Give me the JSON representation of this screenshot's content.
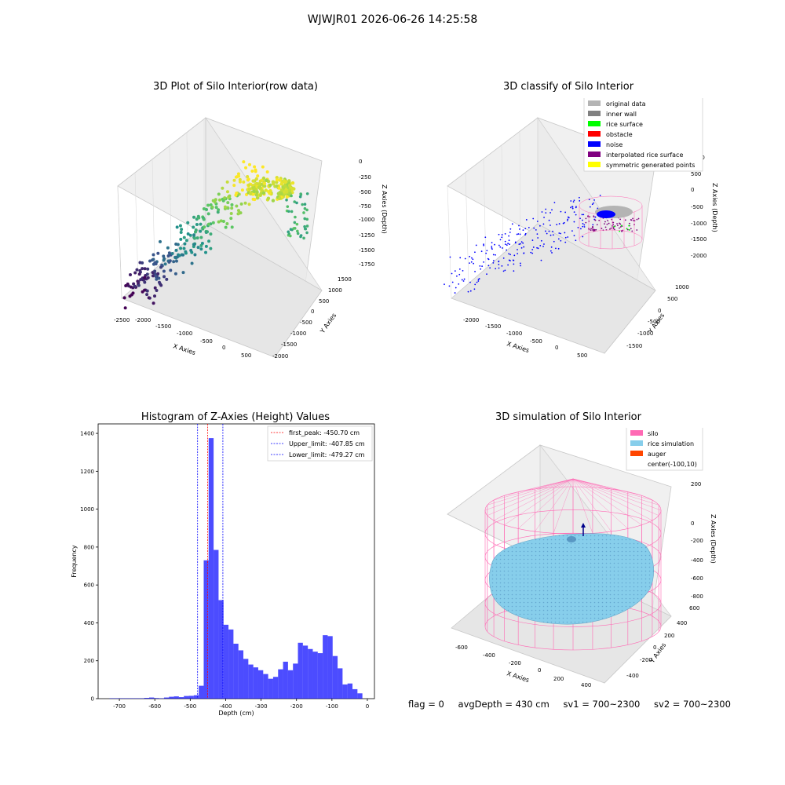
{
  "figure": {
    "title": "WJWJR01 2026-06-26 14:25:58"
  },
  "panels": {
    "raw": {
      "title": "3D Plot of Silo Interior(row data)",
      "xlabel": "X Axies",
      "ylabel": "Y Axies",
      "zlabel": "Z Axies (Depth)",
      "xticks": [
        "-2500",
        "-2000",
        "-1500",
        "-1000",
        "-500",
        "0",
        "500"
      ],
      "yticks": [
        "1500",
        "1000",
        "500",
        "0",
        "-500",
        "-1000",
        "-1500",
        "-2000"
      ],
      "zticks": [
        "0",
        "-250",
        "-500",
        "-750",
        "-1000",
        "-1250",
        "-1500",
        "-1750"
      ]
    },
    "classify": {
      "title": "3D classify of Silo Interior",
      "xlabel": "X Axies",
      "ylabel": "Y Axies",
      "zlabel": "Z Axies (Depth)",
      "xticks": [
        "-2000",
        "-1500",
        "-1000",
        "-500",
        "0",
        "500"
      ],
      "yticks": [
        "1000",
        "500",
        "0",
        "-500",
        "-1000",
        "-1500"
      ],
      "zticks": [
        "1000",
        "500",
        "0",
        "-500",
        "-1000",
        "-1500",
        "-2000"
      ],
      "legend": [
        {
          "label": "original data",
          "color": "#b4b4b4"
        },
        {
          "label": "inner wall",
          "color": "#808080"
        },
        {
          "label": "rice surface",
          "color": "#00ff00"
        },
        {
          "label": "obstacle",
          "color": "#ff0000"
        },
        {
          "label": "noise",
          "color": "#0000ff"
        },
        {
          "label": "interpolated rice surface",
          "color": "#800080"
        },
        {
          "label": "symmetric generated points",
          "color": "#ffff00"
        }
      ]
    },
    "simulation": {
      "title": "3D simulation of Silo Interior",
      "xlabel": "X Axies",
      "ylabel": "Y Axies",
      "zlabel": "Z Axies (Depth)",
      "xticks": [
        "-600",
        "-400",
        "-200",
        "0",
        "200",
        "400"
      ],
      "yticks": [
        "600",
        "400",
        "200",
        "0",
        "-200",
        "-400"
      ],
      "zticks": [
        "200",
        "0",
        "-200",
        "-400",
        "-600",
        "-800"
      ],
      "legend": [
        {
          "label": "silo",
          "color": "#ff69b4"
        },
        {
          "label": "rice simulation",
          "color": "#87ceeb"
        },
        {
          "label": "auger",
          "color": "#ff4500"
        },
        {
          "label": "center(-100,10)",
          "color": "#ffffff"
        }
      ]
    }
  },
  "status": {
    "flag": "flag = 0",
    "avg_depth": "avgDepth = 430 cm",
    "sv1": "sv1 = 700~2300",
    "sv2": "sv2 = 700~2300"
  },
  "chart_data": {
    "type": "bar",
    "title": "Histogram of Z-Axies (Height) Values",
    "xlabel": "Depth (cm)",
    "ylabel": "Frequency",
    "xlim": [
      -760,
      20
    ],
    "ylim": [
      0,
      1450
    ],
    "xticks": [
      -700,
      -600,
      -500,
      -400,
      -300,
      -200,
      -100,
      0
    ],
    "yticks": [
      0,
      200,
      400,
      600,
      800,
      1000,
      1200,
      1400
    ],
    "bin_width": 14,
    "bars": [
      {
        "x0": -728,
        "v": 2
      },
      {
        "x0": -714,
        "v": 2
      },
      {
        "x0": -700,
        "v": 2
      },
      {
        "x0": -686,
        "v": 2
      },
      {
        "x0": -672,
        "v": 2
      },
      {
        "x0": -658,
        "v": 2
      },
      {
        "x0": -644,
        "v": 2
      },
      {
        "x0": -630,
        "v": 4
      },
      {
        "x0": -616,
        "v": 6
      },
      {
        "x0": -602,
        "v": 3
      },
      {
        "x0": -588,
        "v": 2
      },
      {
        "x0": -574,
        "v": 6
      },
      {
        "x0": -560,
        "v": 10
      },
      {
        "x0": -546,
        "v": 12
      },
      {
        "x0": -532,
        "v": 8
      },
      {
        "x0": -518,
        "v": 14
      },
      {
        "x0": -504,
        "v": 15
      },
      {
        "x0": -490,
        "v": 18
      },
      {
        "x0": -476,
        "v": 68
      },
      {
        "x0": -462,
        "v": 730
      },
      {
        "x0": -448,
        "v": 1375
      },
      {
        "x0": -434,
        "v": 785
      },
      {
        "x0": -420,
        "v": 520
      },
      {
        "x0": -406,
        "v": 390
      },
      {
        "x0": -392,
        "v": 365
      },
      {
        "x0": -378,
        "v": 290
      },
      {
        "x0": -364,
        "v": 255
      },
      {
        "x0": -350,
        "v": 210
      },
      {
        "x0": -336,
        "v": 180
      },
      {
        "x0": -322,
        "v": 165
      },
      {
        "x0": -308,
        "v": 150
      },
      {
        "x0": -294,
        "v": 130
      },
      {
        "x0": -280,
        "v": 105
      },
      {
        "x0": -266,
        "v": 115
      },
      {
        "x0": -252,
        "v": 155
      },
      {
        "x0": -238,
        "v": 195
      },
      {
        "x0": -224,
        "v": 150
      },
      {
        "x0": -210,
        "v": 185
      },
      {
        "x0": -196,
        "v": 295
      },
      {
        "x0": -182,
        "v": 280
      },
      {
        "x0": -168,
        "v": 262
      },
      {
        "x0": -154,
        "v": 248
      },
      {
        "x0": -140,
        "v": 240
      },
      {
        "x0": -126,
        "v": 335
      },
      {
        "x0": -112,
        "v": 330
      },
      {
        "x0": -98,
        "v": 225
      },
      {
        "x0": -84,
        "v": 160
      },
      {
        "x0": -70,
        "v": 75
      },
      {
        "x0": -56,
        "v": 80
      },
      {
        "x0": -42,
        "v": 50
      },
      {
        "x0": -28,
        "v": 28
      }
    ],
    "bar_color": "#0000ff",
    "vlines": [
      {
        "label": "first_peak: -450.70 cm",
        "x": -450.7,
        "color": "#ff0000"
      },
      {
        "label": "Upper_limit: -407.85 cm",
        "x": -407.85,
        "color": "#0000ff"
      },
      {
        "label": "Lower_limit: -479.27 cm",
        "x": -479.27,
        "color": "#0000ff"
      }
    ],
    "legend_position": "top-right"
  }
}
